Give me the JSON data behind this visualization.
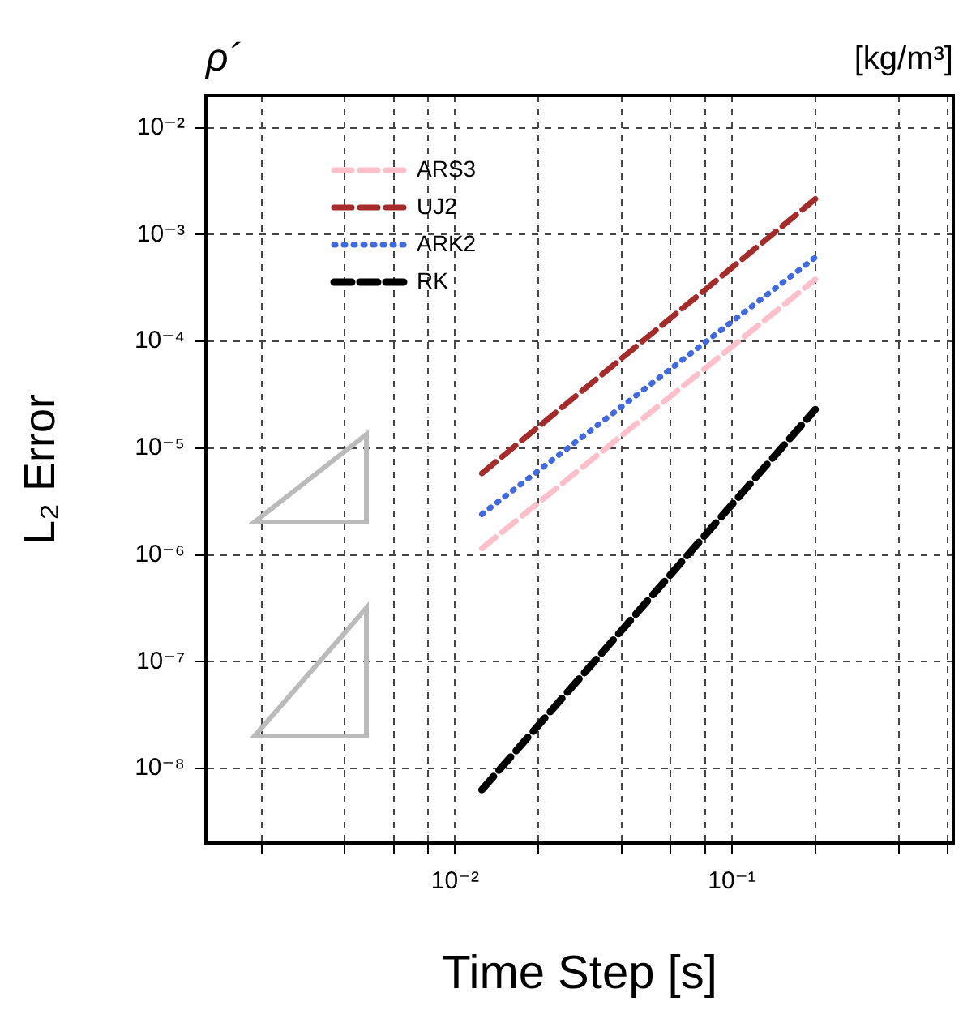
{
  "chart_data": {
    "type": "line",
    "title": "ρ´",
    "subtitle": "[kg/m³]",
    "xlabel": "Time Step [s]",
    "ylabel": "L₂ Error",
    "x": [
      0.0125,
      0.2
    ],
    "series": [
      {
        "name": "ARS3",
        "color": "#ffc0cb",
        "line_style": "dashed",
        "values": [
          1.15e-06,
          0.00038
        ]
      },
      {
        "name": "UJ2",
        "color": "#a52a2a",
        "line_style": "dashed",
        "values": [
          5.8e-06,
          0.00215
        ]
      },
      {
        "name": "ARK2",
        "color": "#4169e1",
        "line_style": "dotted",
        "values": [
          2.4e-06,
          0.00061
        ]
      },
      {
        "name": "RK",
        "color": "#000000",
        "line_style": "dashed",
        "values": [
          6.3e-09,
          2.3e-05
        ]
      }
    ],
    "log": "xy",
    "xlim": [
      0.00126,
      0.63
    ],
    "ylim": [
      2e-09,
      0.02
    ],
    "xticks": [
      {
        "value": 0.002,
        "label": null
      },
      {
        "value": 0.004,
        "label": null
      },
      {
        "value": 0.006,
        "label": null
      },
      {
        "value": 0.008,
        "label": null
      },
      {
        "value": 0.01,
        "label": "10⁻²"
      },
      {
        "value": 0.02,
        "label": null
      },
      {
        "value": 0.04,
        "label": null
      },
      {
        "value": 0.06,
        "label": null
      },
      {
        "value": 0.08,
        "label": null
      },
      {
        "value": 0.1,
        "label": "10⁻¹"
      },
      {
        "value": 0.2,
        "label": null
      },
      {
        "value": 0.4,
        "label": null
      },
      {
        "value": 0.6,
        "label": null
      }
    ],
    "yticks": [
      {
        "value": 1e-08,
        "label": "10⁻⁸"
      },
      {
        "value": 1e-07,
        "label": "10⁻⁷"
      },
      {
        "value": 1e-06,
        "label": "10⁻⁶"
      },
      {
        "value": 1e-05,
        "label": "10⁻⁵"
      },
      {
        "value": 0.0001,
        "label": "10⁻⁴"
      },
      {
        "value": 0.001,
        "label": "10⁻³"
      },
      {
        "value": 0.01,
        "label": "10⁻²"
      }
    ],
    "grid": true,
    "legend": "top left",
    "marker": "none"
  }
}
